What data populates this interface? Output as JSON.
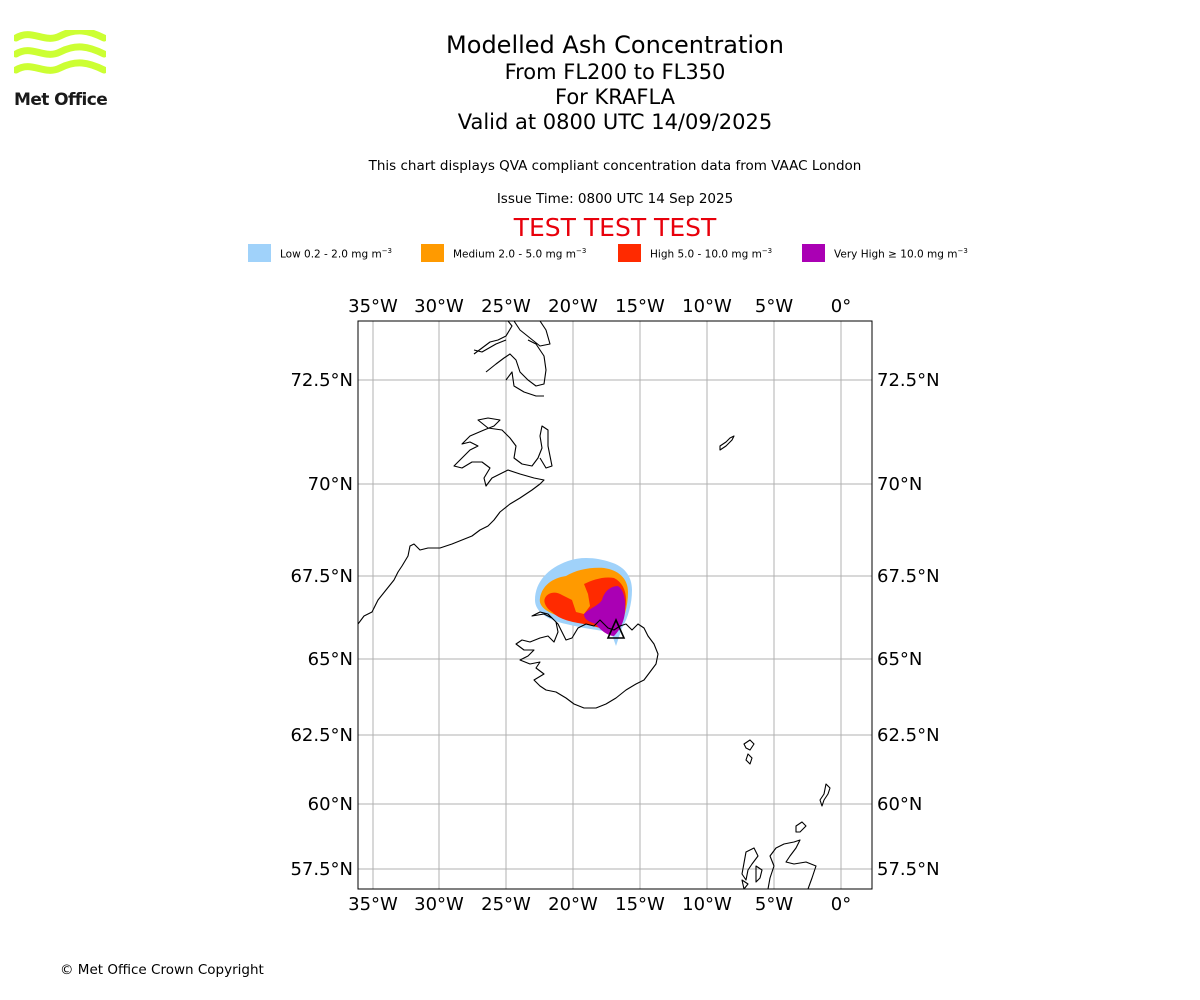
{
  "logo": {
    "text": "Met Office",
    "name": "met-office-logo",
    "color": "#ccff33"
  },
  "title": {
    "line1": "Modelled Ash Concentration",
    "line2": "From FL200 to FL350",
    "line3": "For KRAFLA",
    "line4": "Valid at 0800 UTC 14/09/2025"
  },
  "subtitle": "This chart displays QVA compliant concentration data from VAAC London",
  "issue_time": "Issue Time: 0800 UTC 14 Sep 2025",
  "test_banner": "TEST TEST TEST",
  "legend": [
    {
      "label": "Low 0.2 - 2.0 mg m",
      "unit_exp": "−3",
      "color": "#a0d2fa"
    },
    {
      "label": "Medium 2.0 - 5.0 mg m",
      "unit_exp": "−3",
      "color": "#ff9a00"
    },
    {
      "label": "High 5.0 - 10.0 mg m",
      "unit_exp": "−3",
      "color": "#ff2a00"
    },
    {
      "label": "Very High ≥ 10.0 mg m",
      "unit_exp": "−3",
      "color": "#aa00b4"
    }
  ],
  "map": {
    "lon_labels": [
      "35°W",
      "30°W",
      "25°W",
      "20°W",
      "15°W",
      "10°W",
      "5°W",
      "0°"
    ],
    "lat_labels": [
      "72.5°N",
      "70°N",
      "67.5°N",
      "65°N",
      "62.5°N",
      "60°N",
      "57.5°N"
    ],
    "volcano_marker": "triangle-marker"
  },
  "copyright": "© Met Office Crown Copyright"
}
